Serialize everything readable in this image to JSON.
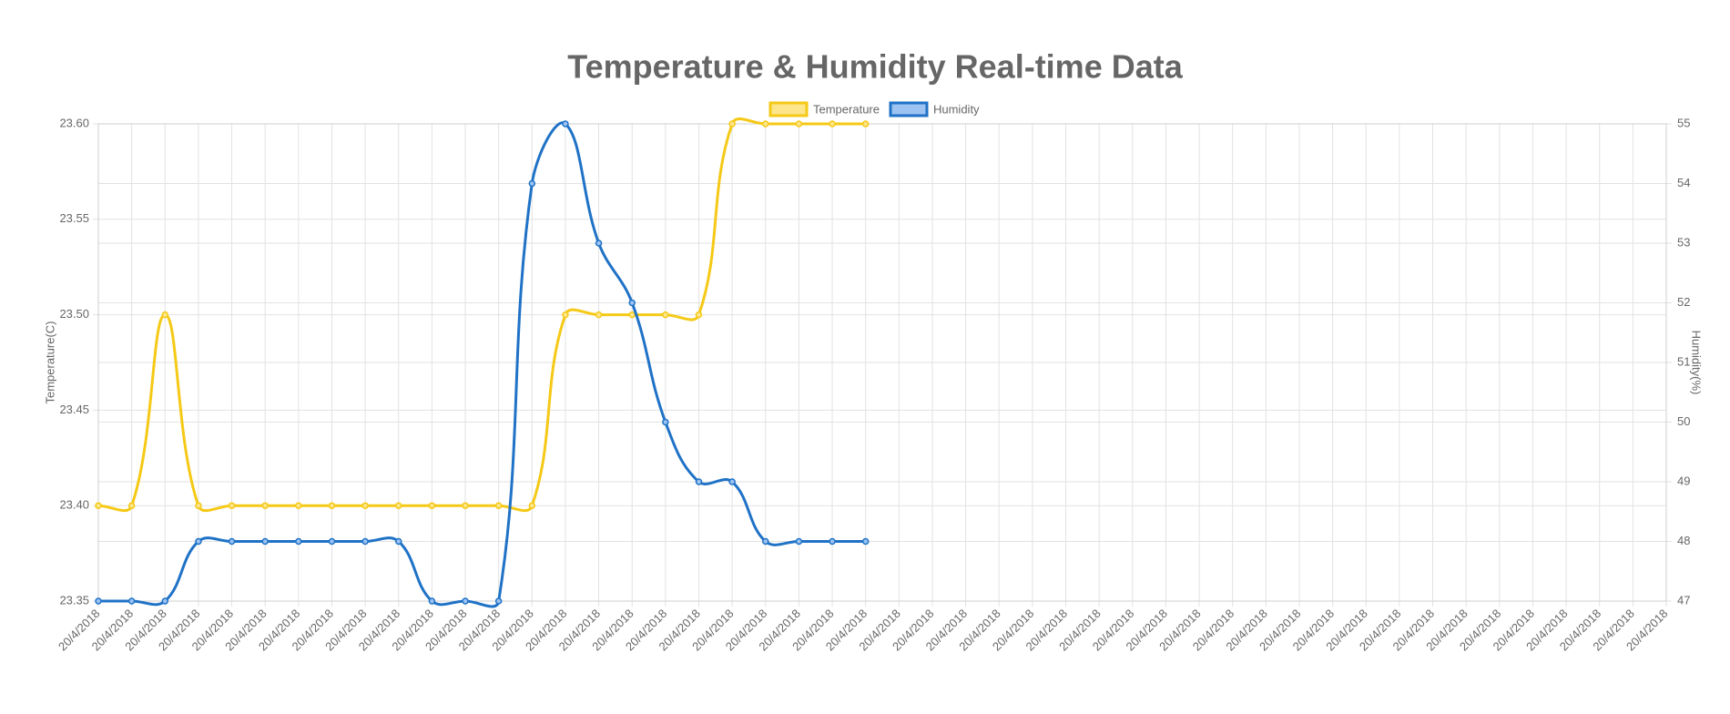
{
  "chart_data": {
    "type": "line",
    "title": "Temperature & Humidity Real-time Data",
    "ylabel": "Temperature(C)",
    "y2label": "Humidity(%)",
    "categories": [
      "20/4/2018",
      "20/4/2018",
      "20/4/2018",
      "20/4/2018",
      "20/4/2018",
      "20/4/2018",
      "20/4/2018",
      "20/4/2018",
      "20/4/2018",
      "20/4/2018",
      "20/4/2018",
      "20/4/2018",
      "20/4/2018",
      "20/4/2018",
      "20/4/2018",
      "20/4/2018",
      "20/4/2018",
      "20/4/2018",
      "20/4/2018",
      "20/4/2018",
      "20/4/2018",
      "20/4/2018",
      "20/4/2018",
      "20/4/2018",
      "20/4/2018",
      "20/4/2018",
      "20/4/2018",
      "20/4/2018",
      "20/4/2018",
      "20/4/2018",
      "20/4/2018",
      "20/4/2018",
      "20/4/2018",
      "20/4/2018",
      "20/4/2018",
      "20/4/2018",
      "20/4/2018",
      "20/4/2018",
      "20/4/2018",
      "20/4/2018",
      "20/4/2018",
      "20/4/2018",
      "20/4/2018",
      "20/4/2018",
      "20/4/2018",
      "20/4/2018",
      "20/4/2018",
      "20/4/2018"
    ],
    "series": [
      {
        "name": "Temperature",
        "color": "#f5c916",
        "fill": "#fde58a",
        "axis": "y",
        "values": [
          23.4,
          23.4,
          23.5,
          23.4,
          23.4,
          23.4,
          23.4,
          23.4,
          23.4,
          23.4,
          23.4,
          23.4,
          23.4,
          23.4,
          23.5,
          23.5,
          23.5,
          23.5,
          23.5,
          23.6,
          23.6,
          23.6,
          23.6,
          23.6,
          null,
          null,
          null,
          null,
          null,
          null,
          null,
          null,
          null,
          null,
          null,
          null,
          null,
          null,
          null,
          null,
          null,
          null,
          null,
          null,
          null,
          null,
          null,
          null
        ]
      },
      {
        "name": "Humidity",
        "color": "#1f72c6",
        "fill": "#9cc3f2",
        "axis": "y2",
        "values": [
          47,
          47,
          47,
          48,
          48,
          48,
          48,
          48,
          48,
          48,
          47,
          47,
          47,
          54,
          55,
          53,
          52,
          50,
          49,
          49,
          48,
          48,
          48,
          48,
          null,
          null,
          null,
          null,
          null,
          null,
          null,
          null,
          null,
          null,
          null,
          null,
          null,
          null,
          null,
          null,
          null,
          null,
          null,
          null,
          null,
          null,
          null,
          null
        ]
      }
    ],
    "ylim": [
      23.35,
      23.6
    ],
    "yticks": [
      23.35,
      {
        "value": 23.4,
        "label": "23.40"
      },
      23.45,
      {
        "value": 23.5,
        "label": "23.50"
      },
      23.55,
      {
        "value": 23.6,
        "label": "23.60"
      }
    ],
    "y2lim": [
      47,
      55
    ],
    "y2ticks": [
      47,
      48,
      49,
      50,
      51,
      52,
      53,
      54,
      55
    ],
    "grid": true,
    "legend": "top"
  }
}
